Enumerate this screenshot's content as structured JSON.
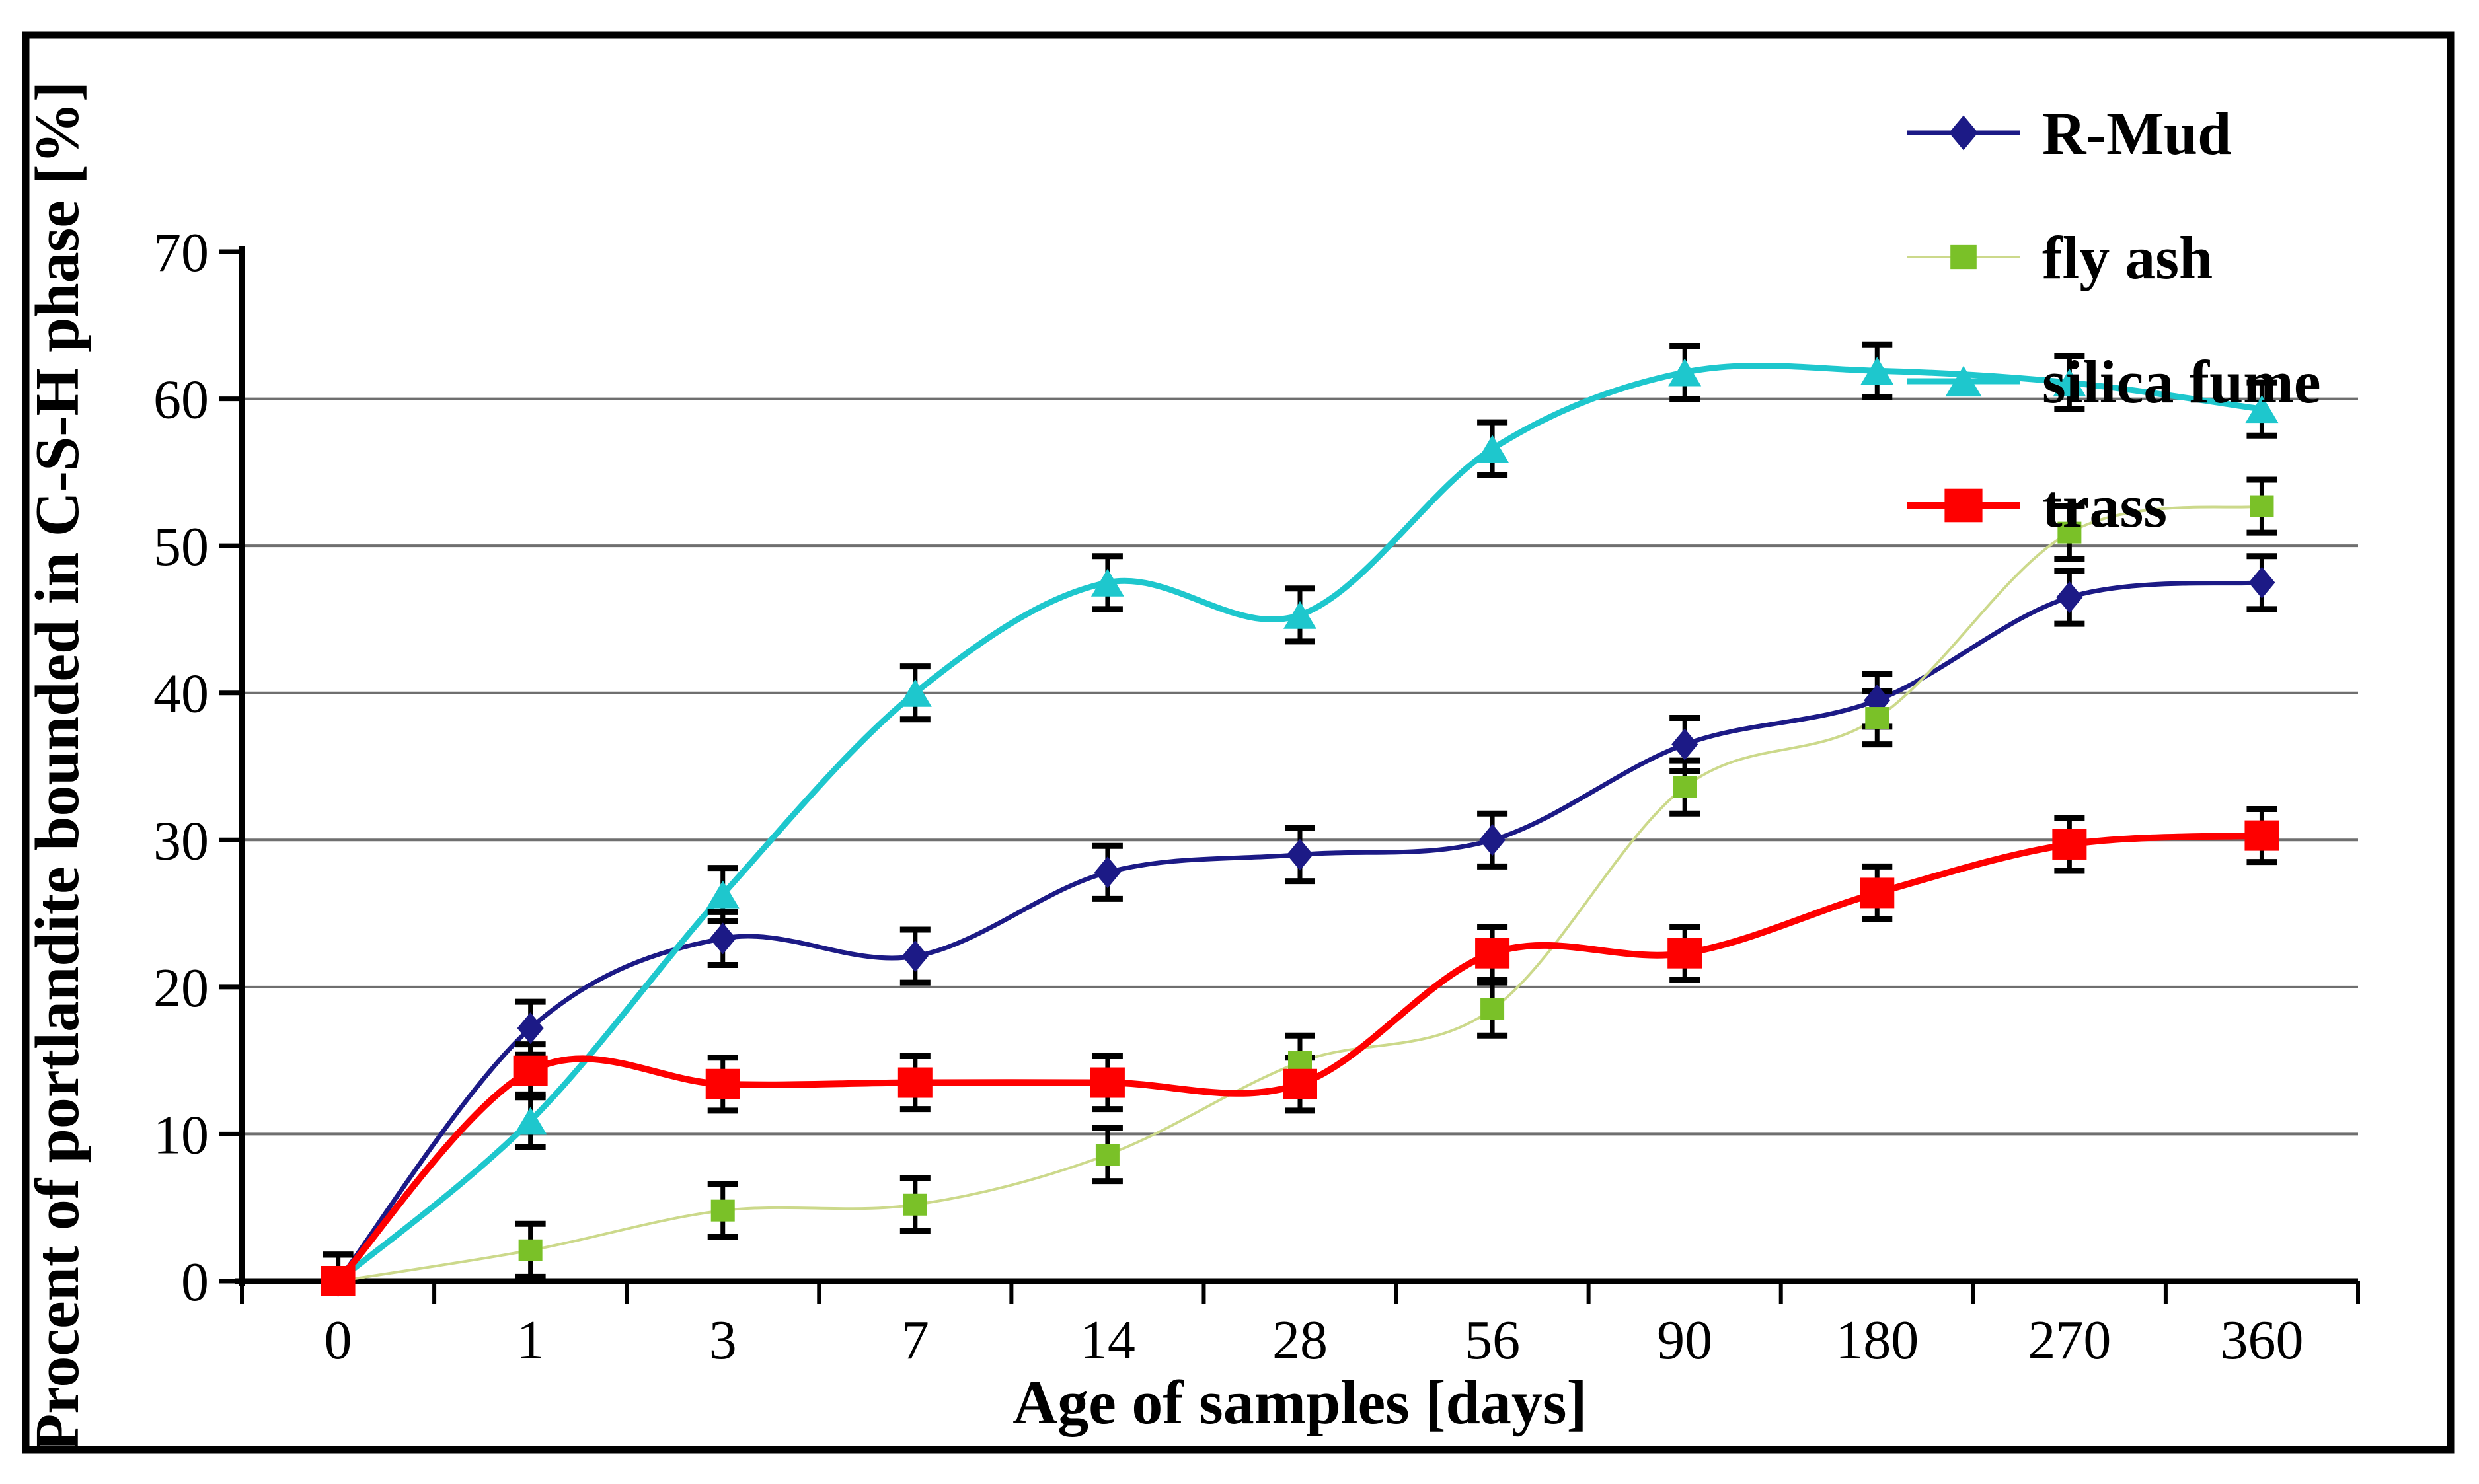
{
  "figure": {
    "background": "#ffffff",
    "frame_color": "#000000"
  },
  "chart_data": {
    "type": "line",
    "title": "",
    "xlabel": "Age of samples [days]",
    "ylabel": "Procent of portlandite bounded in C-S-H phase [%]",
    "categories": [
      0,
      1,
      3,
      7,
      14,
      28,
      56,
      90,
      180,
      270,
      360
    ],
    "x_tick_labels": [
      "0",
      "1",
      "3",
      "7",
      "14",
      "28",
      "56",
      "90",
      "180",
      "270",
      "360"
    ],
    "yticks": [
      0,
      10,
      20,
      30,
      40,
      50,
      60,
      70
    ],
    "ylim": [
      0,
      70
    ],
    "grid": "horizontal",
    "gridline_color": "#6f6f6f",
    "axis_color": "#000000",
    "legend_position": "top-right-inside",
    "error_bars": {
      "show": true,
      "value": 1.8,
      "color": "#000000"
    },
    "series": [
      {
        "name": "R-Mud",
        "marker": "diamond",
        "marker_color": "#1c1a86",
        "line_color": "#1c1a86",
        "values": [
          0,
          17.2,
          23.3,
          22.1,
          27.8,
          29.0,
          30.0,
          36.5,
          39.5,
          46.5,
          47.5
        ]
      },
      {
        "name": "fly ash",
        "marker": "square",
        "marker_color": "#7ac128",
        "line_color": "#ccd98b",
        "values": [
          0,
          2.1,
          4.8,
          5.2,
          8.6,
          14.9,
          18.5,
          33.6,
          38.3,
          50.9,
          52.7
        ]
      },
      {
        "name": "silica fume",
        "marker": "triangle",
        "marker_color": "#1ec7cd",
        "line_color": "#1ec7cd",
        "values": [
          0,
          10.9,
          26.3,
          40.0,
          47.5,
          45.3,
          56.6,
          61.8,
          61.9,
          61.1,
          59.3
        ]
      },
      {
        "name": "trass",
        "marker": "square",
        "marker_color": "#fe0000",
        "line_color": "#fe0000",
        "values": [
          0,
          14.3,
          13.4,
          13.5,
          13.5,
          13.4,
          22.3,
          22.3,
          26.4,
          29.7,
          30.3
        ]
      }
    ]
  }
}
